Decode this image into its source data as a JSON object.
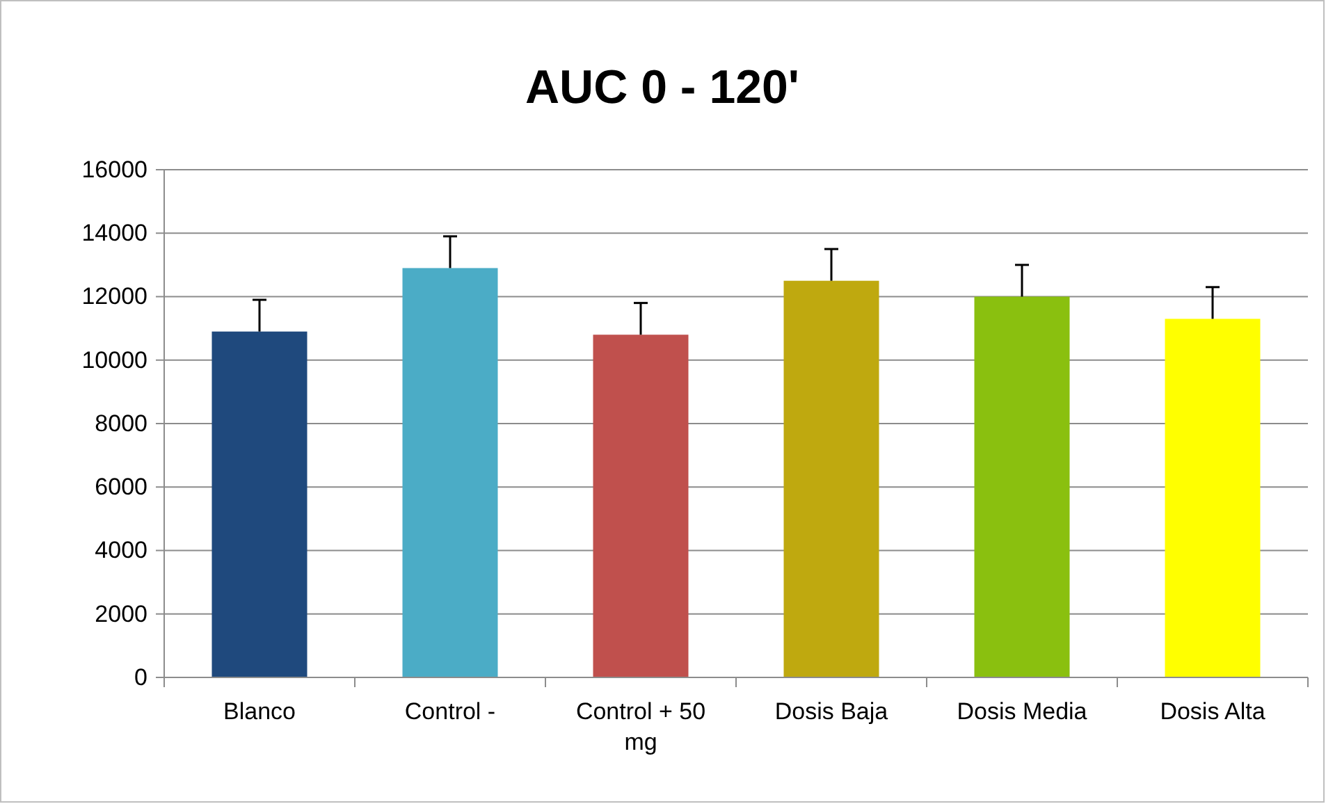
{
  "chart_data": {
    "type": "bar",
    "title": "AUC 0 - 120'",
    "categories": [
      "Blanco",
      "Control -",
      "Control + 50 mg",
      "Dosis Baja",
      "Dosis Media",
      "Dosis Alta"
    ],
    "values": [
      10900,
      12900,
      10800,
      12500,
      12000,
      11300
    ],
    "colors": [
      "#1f497d",
      "#4bacc6",
      "#c0504d",
      "#bfa90f",
      "#8ac00f",
      "#ffff00"
    ],
    "errors": [
      [
        10900,
        11900
      ],
      [
        12900,
        13900
      ],
      [
        10800,
        11800
      ],
      [
        12500,
        13500
      ],
      [
        12000,
        13000
      ],
      [
        11300,
        12300
      ]
    ],
    "ylim": [
      0,
      16000
    ],
    "yticks": [
      0,
      2000,
      4000,
      6000,
      8000,
      10000,
      12000,
      14000,
      16000
    ],
    "grid": "y"
  }
}
